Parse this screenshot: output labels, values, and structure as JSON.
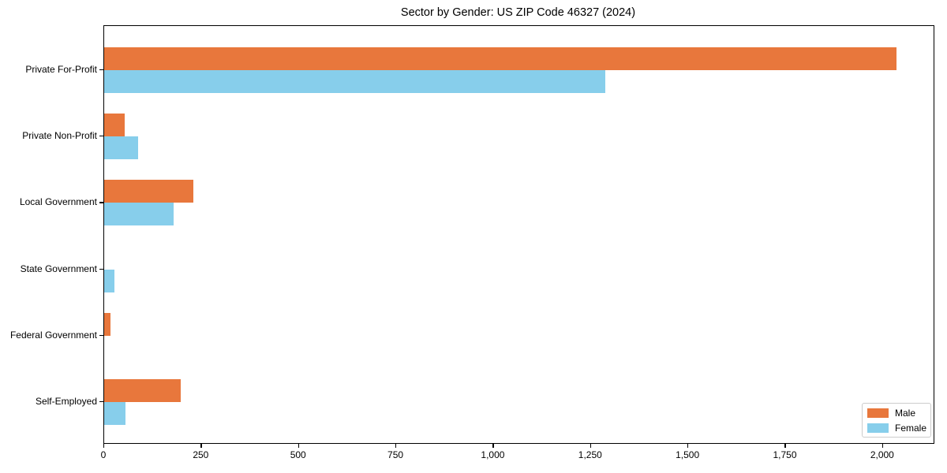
{
  "chart_data": {
    "type": "bar",
    "orientation": "horizontal",
    "title": "Sector by Gender: US ZIP Code 46327 (2024)",
    "categories": [
      "Private For-Profit",
      "Private Non-Profit",
      "Local Government",
      "State Government",
      "Federal Government",
      "Self-Employed"
    ],
    "series": [
      {
        "name": "Male",
        "color": "#E8773C",
        "values": [
          2034,
          53,
          229,
          0,
          16,
          197
        ]
      },
      {
        "name": "Female",
        "color": "#87CEEB",
        "values": [
          1287,
          87,
          178,
          26,
          0,
          55
        ]
      }
    ],
    "xlabel": "",
    "ylabel": "",
    "xlim": [
      0,
      2130
    ],
    "x_ticks": [
      {
        "value": 0,
        "label": "0"
      },
      {
        "value": 250,
        "label": "250"
      },
      {
        "value": 500,
        "label": "500"
      },
      {
        "value": 750,
        "label": "750"
      },
      {
        "value": 1000,
        "label": "1,000"
      },
      {
        "value": 1250,
        "label": "1,250"
      },
      {
        "value": 1500,
        "label": "1,500"
      },
      {
        "value": 1750,
        "label": "1,750"
      },
      {
        "value": 2000,
        "label": "2,000"
      }
    ],
    "grid": false,
    "legend_position": "lower right"
  },
  "colors": {
    "male": "#E8773C",
    "female": "#87CEEB",
    "spine": "#000000",
    "background": "#ffffff",
    "legend_border": "#cccccc"
  }
}
